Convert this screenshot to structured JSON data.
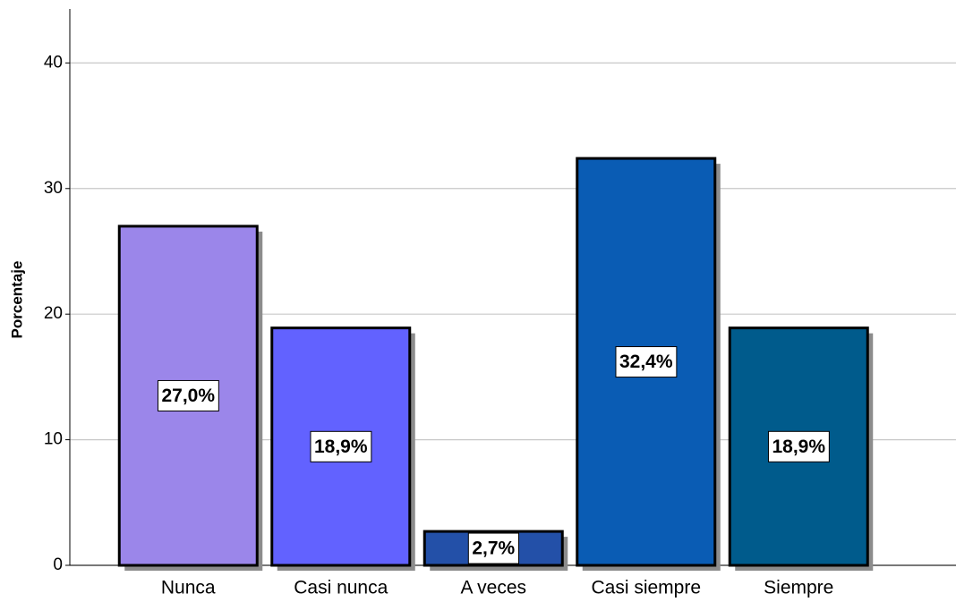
{
  "chart_data": {
    "type": "bar",
    "ylabel": "Porcentaje",
    "categories": [
      "Nunca",
      "Casi nunca",
      "A veces",
      "Casi siempre",
      "Siempre"
    ],
    "values": [
      27.0,
      18.9,
      2.7,
      32.4,
      18.9
    ],
    "value_labels": [
      "27,0%",
      "18,9%",
      "2,7%",
      "32,4%",
      "18,9%"
    ],
    "colors": [
      "#9b86ea",
      "#6262ff",
      "#2350a8",
      "#0a5cb4",
      "#005b8c"
    ],
    "ylim": [
      0,
      44.3
    ],
    "yticks": [
      0,
      10,
      20,
      30,
      40
    ],
    "grid": true
  }
}
